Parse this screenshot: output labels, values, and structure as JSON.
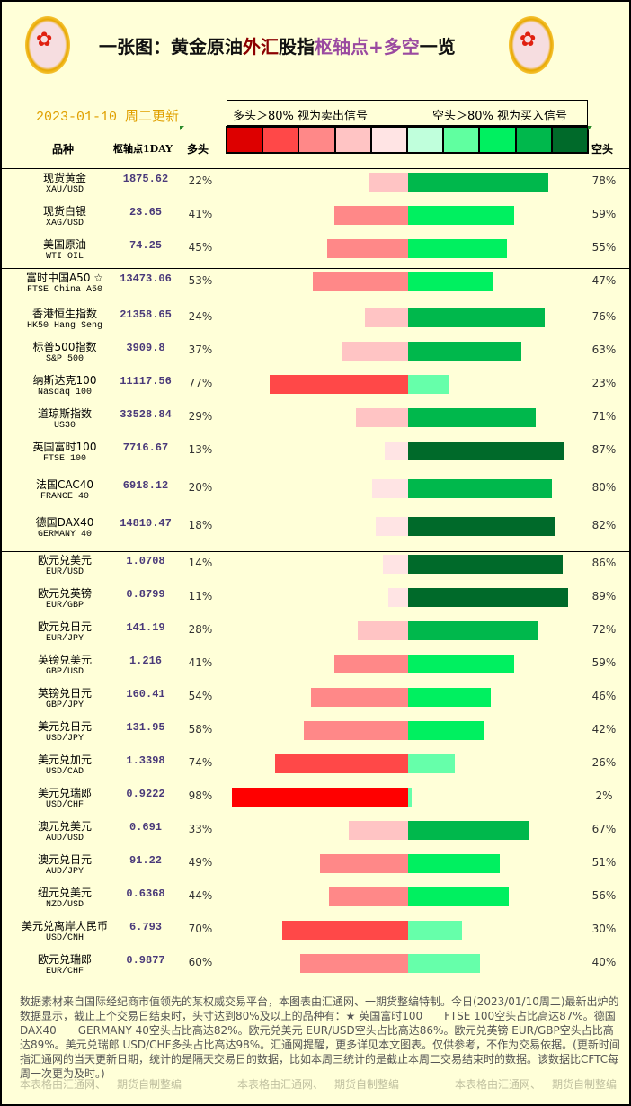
{
  "header": {
    "title_parts": [
      "一张图：黄金原油",
      "外汇",
      "股指",
      "枢轴点+多空",
      "一览"
    ],
    "date": "2023-01-10 周二更新"
  },
  "legend": {
    "long_text": "多头＞80% 视为卖出信号",
    "short_text": "空头＞80% 视为买入信号",
    "swatches": [
      "#dd0000",
      "#ff4848",
      "#ff8888",
      "#ffc4c4",
      "#ffe4e4",
      "#c0ffdc",
      "#60ffa0",
      "#00f060",
      "#00b84c",
      "#006a2a"
    ]
  },
  "columns": {
    "name": "品种",
    "pivot": "枢轴点1DAY",
    "long": "多头",
    "short": "空头"
  },
  "colors": {
    "long_bins": [
      "#ffe4e4",
      "#ffc4c4",
      "#ff8888",
      "#ff4848",
      "#ff0000"
    ],
    "short_bins": [
      "#66ffaa",
      "#00f060",
      "#00b84c",
      "#006a2a"
    ]
  },
  "rows": [
    {
      "name": "现货黄金",
      "code": "XAU/USD",
      "pivot": "1875.62",
      "long": "22%",
      "short": "78%",
      "long_val": 22,
      "short_val": 78
    },
    {
      "name": "现货白银",
      "code": "XAG/USD",
      "pivot": "23.65",
      "long": "41%",
      "short": "59%",
      "long_val": 41,
      "short_val": 59
    },
    {
      "name": "美国原油",
      "code": "WTI OIL",
      "pivot": "74.25",
      "long": "45%",
      "short": "55%",
      "long_val": 45,
      "short_val": 55
    },
    {
      "name": "富时中国A50 ☆",
      "code": "FTSE China A50",
      "pivot": "13473.06",
      "long": "53%",
      "short": "47%",
      "long_val": 53,
      "short_val": 47
    },
    {
      "name": "香港恒生指数",
      "code": "HK50 Hang Seng",
      "pivot": "21358.65",
      "long": "24%",
      "short": "76%",
      "long_val": 24,
      "short_val": 76
    },
    {
      "name": "标普500指数",
      "code": "S&P 500",
      "pivot": "3909.8",
      "long": "37%",
      "short": "63%",
      "long_val": 37,
      "short_val": 63
    },
    {
      "name": "纳斯达克100",
      "code": "Nasdaq 100",
      "pivot": "11117.56",
      "long": "77%",
      "short": "23%",
      "long_val": 77,
      "short_val": 23
    },
    {
      "name": "道琼斯指数",
      "code": "US30",
      "pivot": "33528.84",
      "long": "29%",
      "short": "71%",
      "long_val": 29,
      "short_val": 71
    },
    {
      "name": "英国富时100",
      "code": "FTSE 100",
      "pivot": "7716.67",
      "long": "13%",
      "short": "87%",
      "long_val": 13,
      "short_val": 87
    },
    {
      "name": "法国CAC40",
      "code": "FRANCE 40",
      "pivot": "6918.12",
      "long": "20%",
      "short": "80%",
      "long_val": 20,
      "short_val": 80
    },
    {
      "name": "德国DAX40",
      "code": "GERMANY 40",
      "pivot": "14810.47",
      "long": "18%",
      "short": "82%",
      "long_val": 18,
      "short_val": 82
    },
    {
      "name": "欧元兑美元",
      "code": "EUR/USD",
      "pivot": "1.0708",
      "long": "14%",
      "short": "86%",
      "long_val": 14,
      "short_val": 86
    },
    {
      "name": "欧元兑英镑",
      "code": "EUR/GBP",
      "pivot": "0.8799",
      "long": "11%",
      "short": "89%",
      "long_val": 11,
      "short_val": 89
    },
    {
      "name": "欧元兑日元",
      "code": "EUR/JPY",
      "pivot": "141.19",
      "long": "28%",
      "short": "72%",
      "long_val": 28,
      "short_val": 72
    },
    {
      "name": "英镑兑美元",
      "code": "GBP/USD",
      "pivot": "1.216",
      "long": "41%",
      "short": "59%",
      "long_val": 41,
      "short_val": 59
    },
    {
      "name": "英镑兑日元",
      "code": "GBP/JPY",
      "pivot": "160.41",
      "long": "54%",
      "short": "46%",
      "long_val": 54,
      "short_val": 46
    },
    {
      "name": "美元兑日元",
      "code": "USD/JPY",
      "pivot": "131.95",
      "long": "58%",
      "short": "42%",
      "long_val": 58,
      "short_val": 42
    },
    {
      "name": "美元兑加元",
      "code": "USD/CAD",
      "pivot": "1.3398",
      "long": "74%",
      "short": "26%",
      "long_val": 74,
      "short_val": 26
    },
    {
      "name": "美元兑瑞郎",
      "code": "USD/CHF",
      "pivot": "0.9222",
      "long": "98%",
      "short": "2%",
      "long_val": 98,
      "short_val": 2
    },
    {
      "name": "澳元兑美元",
      "code": "AUD/USD",
      "pivot": "0.691",
      "long": "33%",
      "short": "67%",
      "long_val": 33,
      "short_val": 67
    },
    {
      "name": "澳元兑日元",
      "code": "AUD/JPY",
      "pivot": "91.22",
      "long": "49%",
      "short": "51%",
      "long_val": 49,
      "short_val": 51
    },
    {
      "name": "纽元兑美元",
      "code": "NZD/USD",
      "pivot": "0.6368",
      "long": "44%",
      "short": "56%",
      "long_val": 44,
      "short_val": 56
    },
    {
      "name": "美元兑离岸人民币",
      "code": "USD/CNH",
      "pivot": "6.793",
      "long": "70%",
      "short": "30%",
      "long_val": 70,
      "short_val": 30
    },
    {
      "name": "欧元兑瑞郎",
      "code": "EUR/CHF",
      "pivot": "0.9877",
      "long": "60%",
      "short": "40%",
      "long_val": 60,
      "short_val": 40
    }
  ],
  "footer": {
    "text": "数据素材来自国际经纪商市值领先的某权威交易平台，本图表由汇通网、一期货整编特制。今日(2023/01/10周二)最新出炉的数据显示，截止上个交易日结束时，头寸达到80%及以上的品种有：★ 英国富时100　　FTSE 100空头占比高达87%。德国DAX40　　GERMANY 40空头占比高达82%。欧元兑美元 EUR/USD空头占比高达86%。欧元兑英镑 EUR/GBP空头占比高达89%。美元兑瑞郎 USD/CHF多头占比高达98%。汇通网提醒，更多详见本文图表。仅供参考，不作为交易依据。(更新时间指汇通网的当天更新日期，统计的是隔天交易日的数据，比如本周三统计的是截止本周二交易结束时的数据。该数据比CFTC每周一次更为及时。)",
    "credit": "本表格由汇通网、一期货自制整编"
  }
}
